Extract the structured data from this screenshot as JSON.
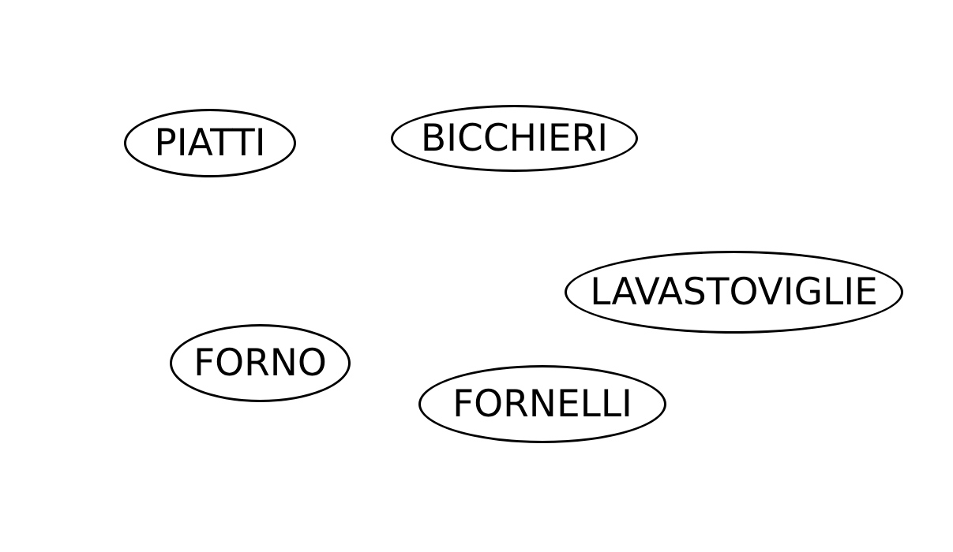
{
  "nodes": [
    {
      "id": "piatti",
      "label": "PIATTI"
    },
    {
      "id": "bicchieri",
      "label": "BICCHIERI"
    },
    {
      "id": "lavastoviglie",
      "label": "LAVASTOVIGLIE"
    },
    {
      "id": "forno",
      "label": "FORNO"
    },
    {
      "id": "fornelli",
      "label": "FORNELLI"
    }
  ],
  "colors": {
    "background": "#ffffff",
    "outline": "#000000",
    "text": "#000000"
  }
}
